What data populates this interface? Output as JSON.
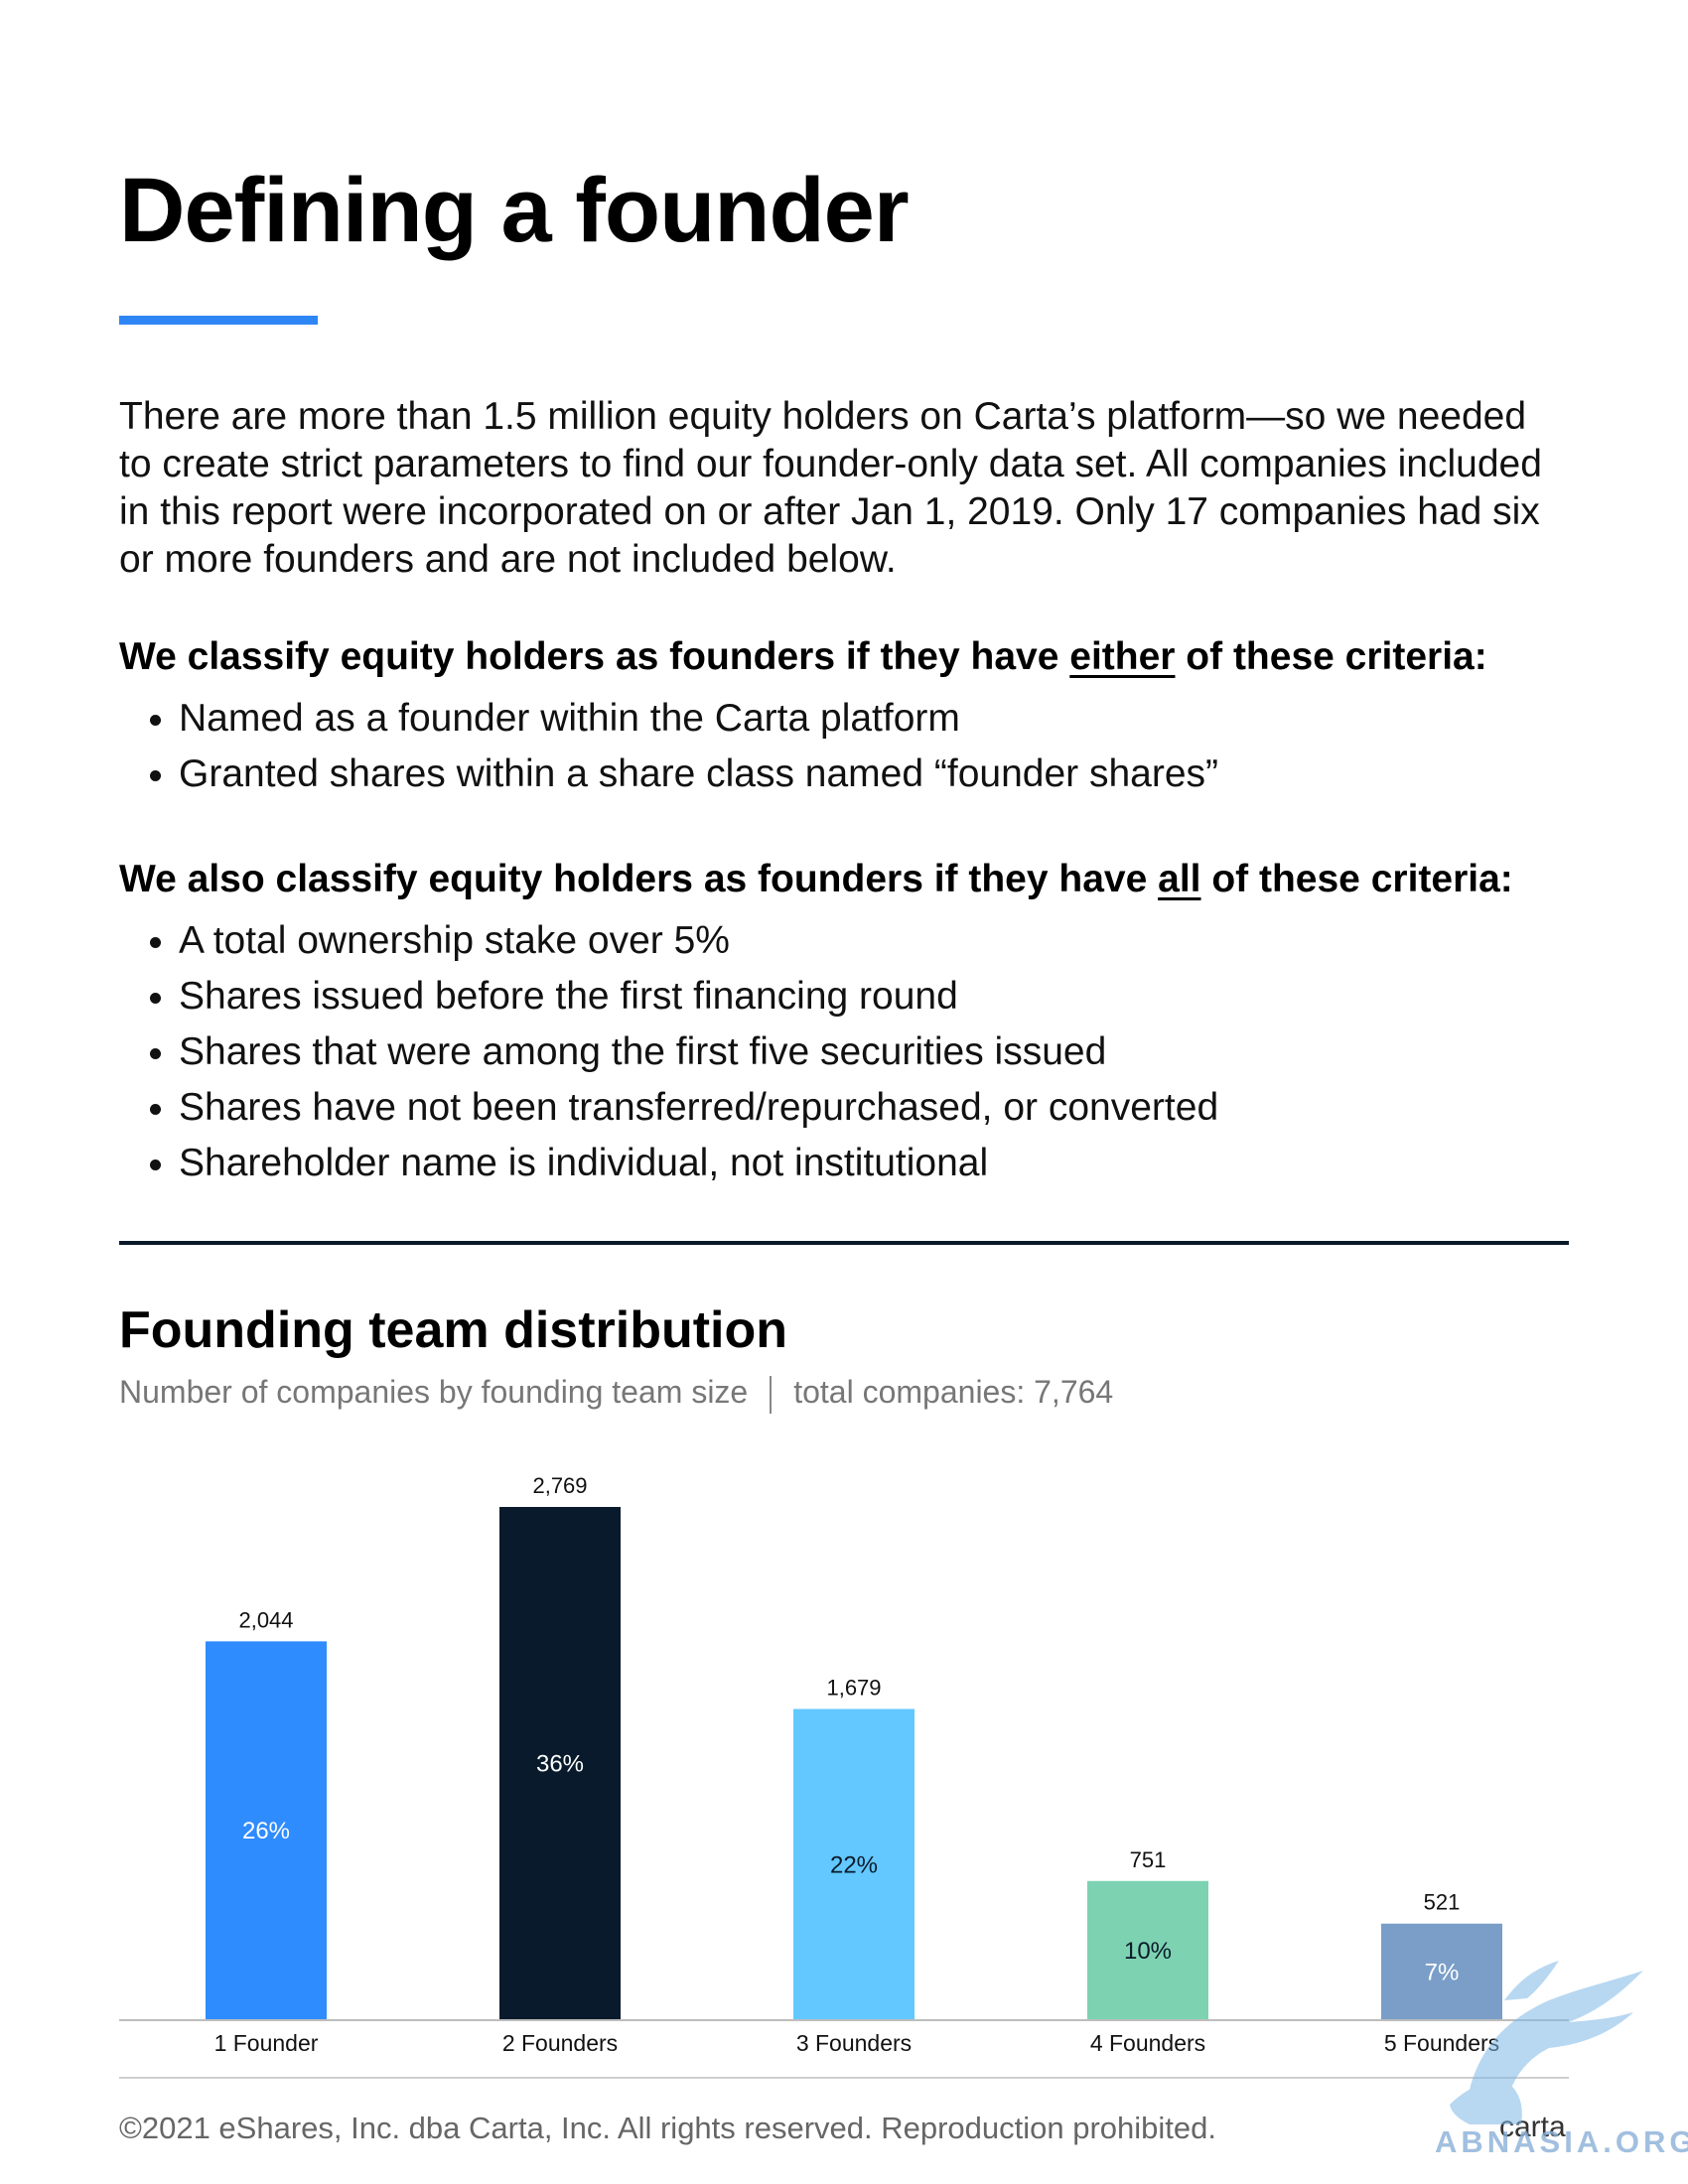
{
  "page": {
    "title": "Defining a founder",
    "intro": "There are more than 1.5 million equity holders on Carta’s platform—so we needed to create strict parameters to find our founder-only data set. All companies included in this report were incorporated on or after Jan 1, 2019. Only 17 companies had six or more founders and are not included below."
  },
  "criteria": {
    "either": {
      "heading_before": "We classify equity holders as founders if they have ",
      "heading_emphasis": "either",
      "heading_after": " of these criteria:",
      "items": [
        "Named as a founder within the Carta platform",
        "Granted shares within a share class named “founder shares”"
      ]
    },
    "all": {
      "heading_before": "We also classify equity holders as founders if they have ",
      "heading_emphasis": "all",
      "heading_after": " of these criteria:",
      "items": [
        "A total ownership stake over 5%",
        "Shares issued before the first financing round",
        "Shares that were among the first five securities issued",
        "Shares have not been transferred/repurchased, or converted",
        "Shareholder name is individual, not institutional"
      ]
    }
  },
  "chart_section": {
    "title": "Founding team distribution",
    "subtitle_left": "Number of companies by founding team size",
    "subtitle_right": "total companies: 7,764"
  },
  "chart_data": {
    "type": "bar",
    "title": "Founding team distribution",
    "subtitle": "Number of companies by founding team size | total companies: 7,764",
    "xlabel": "",
    "ylabel": "",
    "categories": [
      "1 Founder",
      "2 Founders",
      "3 Founders",
      "4 Founders",
      "5 Founders"
    ],
    "values": [
      2044,
      2769,
      1679,
      751,
      521
    ],
    "value_labels": [
      "2,044",
      "2,769",
      "1,679",
      "751",
      "521"
    ],
    "percent_labels": [
      "26%",
      "36%",
      "22%",
      "10%",
      "7%"
    ],
    "colors": [
      "#2f8cff",
      "#081a2b",
      "#62c8ff",
      "#7dd3b1",
      "#7a9ec8"
    ],
    "percent_label_colors": [
      "#ffffff",
      "#ffffff",
      "#0b1a2a",
      "#0b1a2a",
      "#ffffff"
    ],
    "ylim": [
      0,
      2769
    ],
    "grid": false,
    "legend": "none"
  },
  "footer": {
    "copyright": "©2021 eShares, Inc. dba Carta, Inc. All rights reserved. Reproduction prohibited.",
    "brand": "carta"
  },
  "watermark": {
    "text": "ABNASIA.ORG"
  }
}
